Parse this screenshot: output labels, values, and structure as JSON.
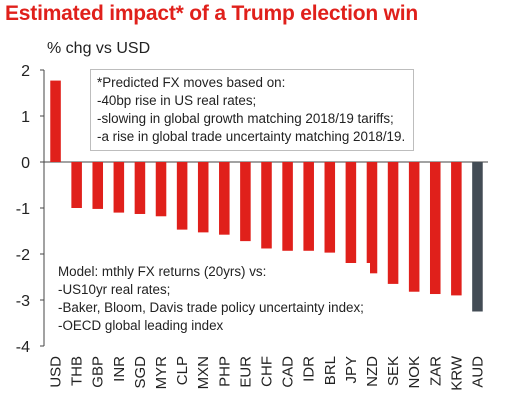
{
  "title": "Estimated impact* of a Trump election win",
  "colors": {
    "title": "#e0201b",
    "bar": "#e0201b",
    "highlight_bar": "#434c55",
    "axis": "#444444"
  },
  "chart_data": {
    "type": "bar",
    "title": "Estimated impact* of a Trump election win",
    "ylabel": "% chg vs USD",
    "xlabel": "",
    "ylim": [
      -4,
      2
    ],
    "yticks": [
      2,
      1,
      0,
      -1,
      -2,
      -3,
      -4
    ],
    "grid": false,
    "legend": "none",
    "categories": [
      "USD",
      "THB",
      "GBP",
      "INR",
      "SGD",
      "MYR",
      "CLP",
      "MXN",
      "PHP",
      "EUR",
      "CHF",
      "CAD",
      "IDR",
      "BRL",
      "JPY",
      "NZD",
      "SEK",
      "NOK",
      "ZAR",
      "KRW",
      "AUD"
    ],
    "values": [
      1.77,
      -1.0,
      -1.02,
      -1.1,
      -1.13,
      -1.18,
      -1.47,
      -1.53,
      -1.58,
      -1.72,
      -1.88,
      -1.93,
      -1.93,
      -1.97,
      -2.22,
      -2.42,
      -2.65,
      -2.82,
      -2.87,
      -2.9,
      -3.25
    ],
    "highlight_category": "AUD",
    "annotations": [
      [
        "*Predicted FX moves based on:",
        "-40bp rise in US real rates;",
        "-slowing in global growth matching 2018/19 tariffs;",
        "-a rise in global trade uncertainty matching 2018/19."
      ],
      [
        "Model: mthly FX returns (20yrs) vs:",
        "-US10yr real rates;",
        "-Baker, Bloom, Davis trade policy uncertainty index;",
        "-OECD global leading index"
      ]
    ]
  }
}
